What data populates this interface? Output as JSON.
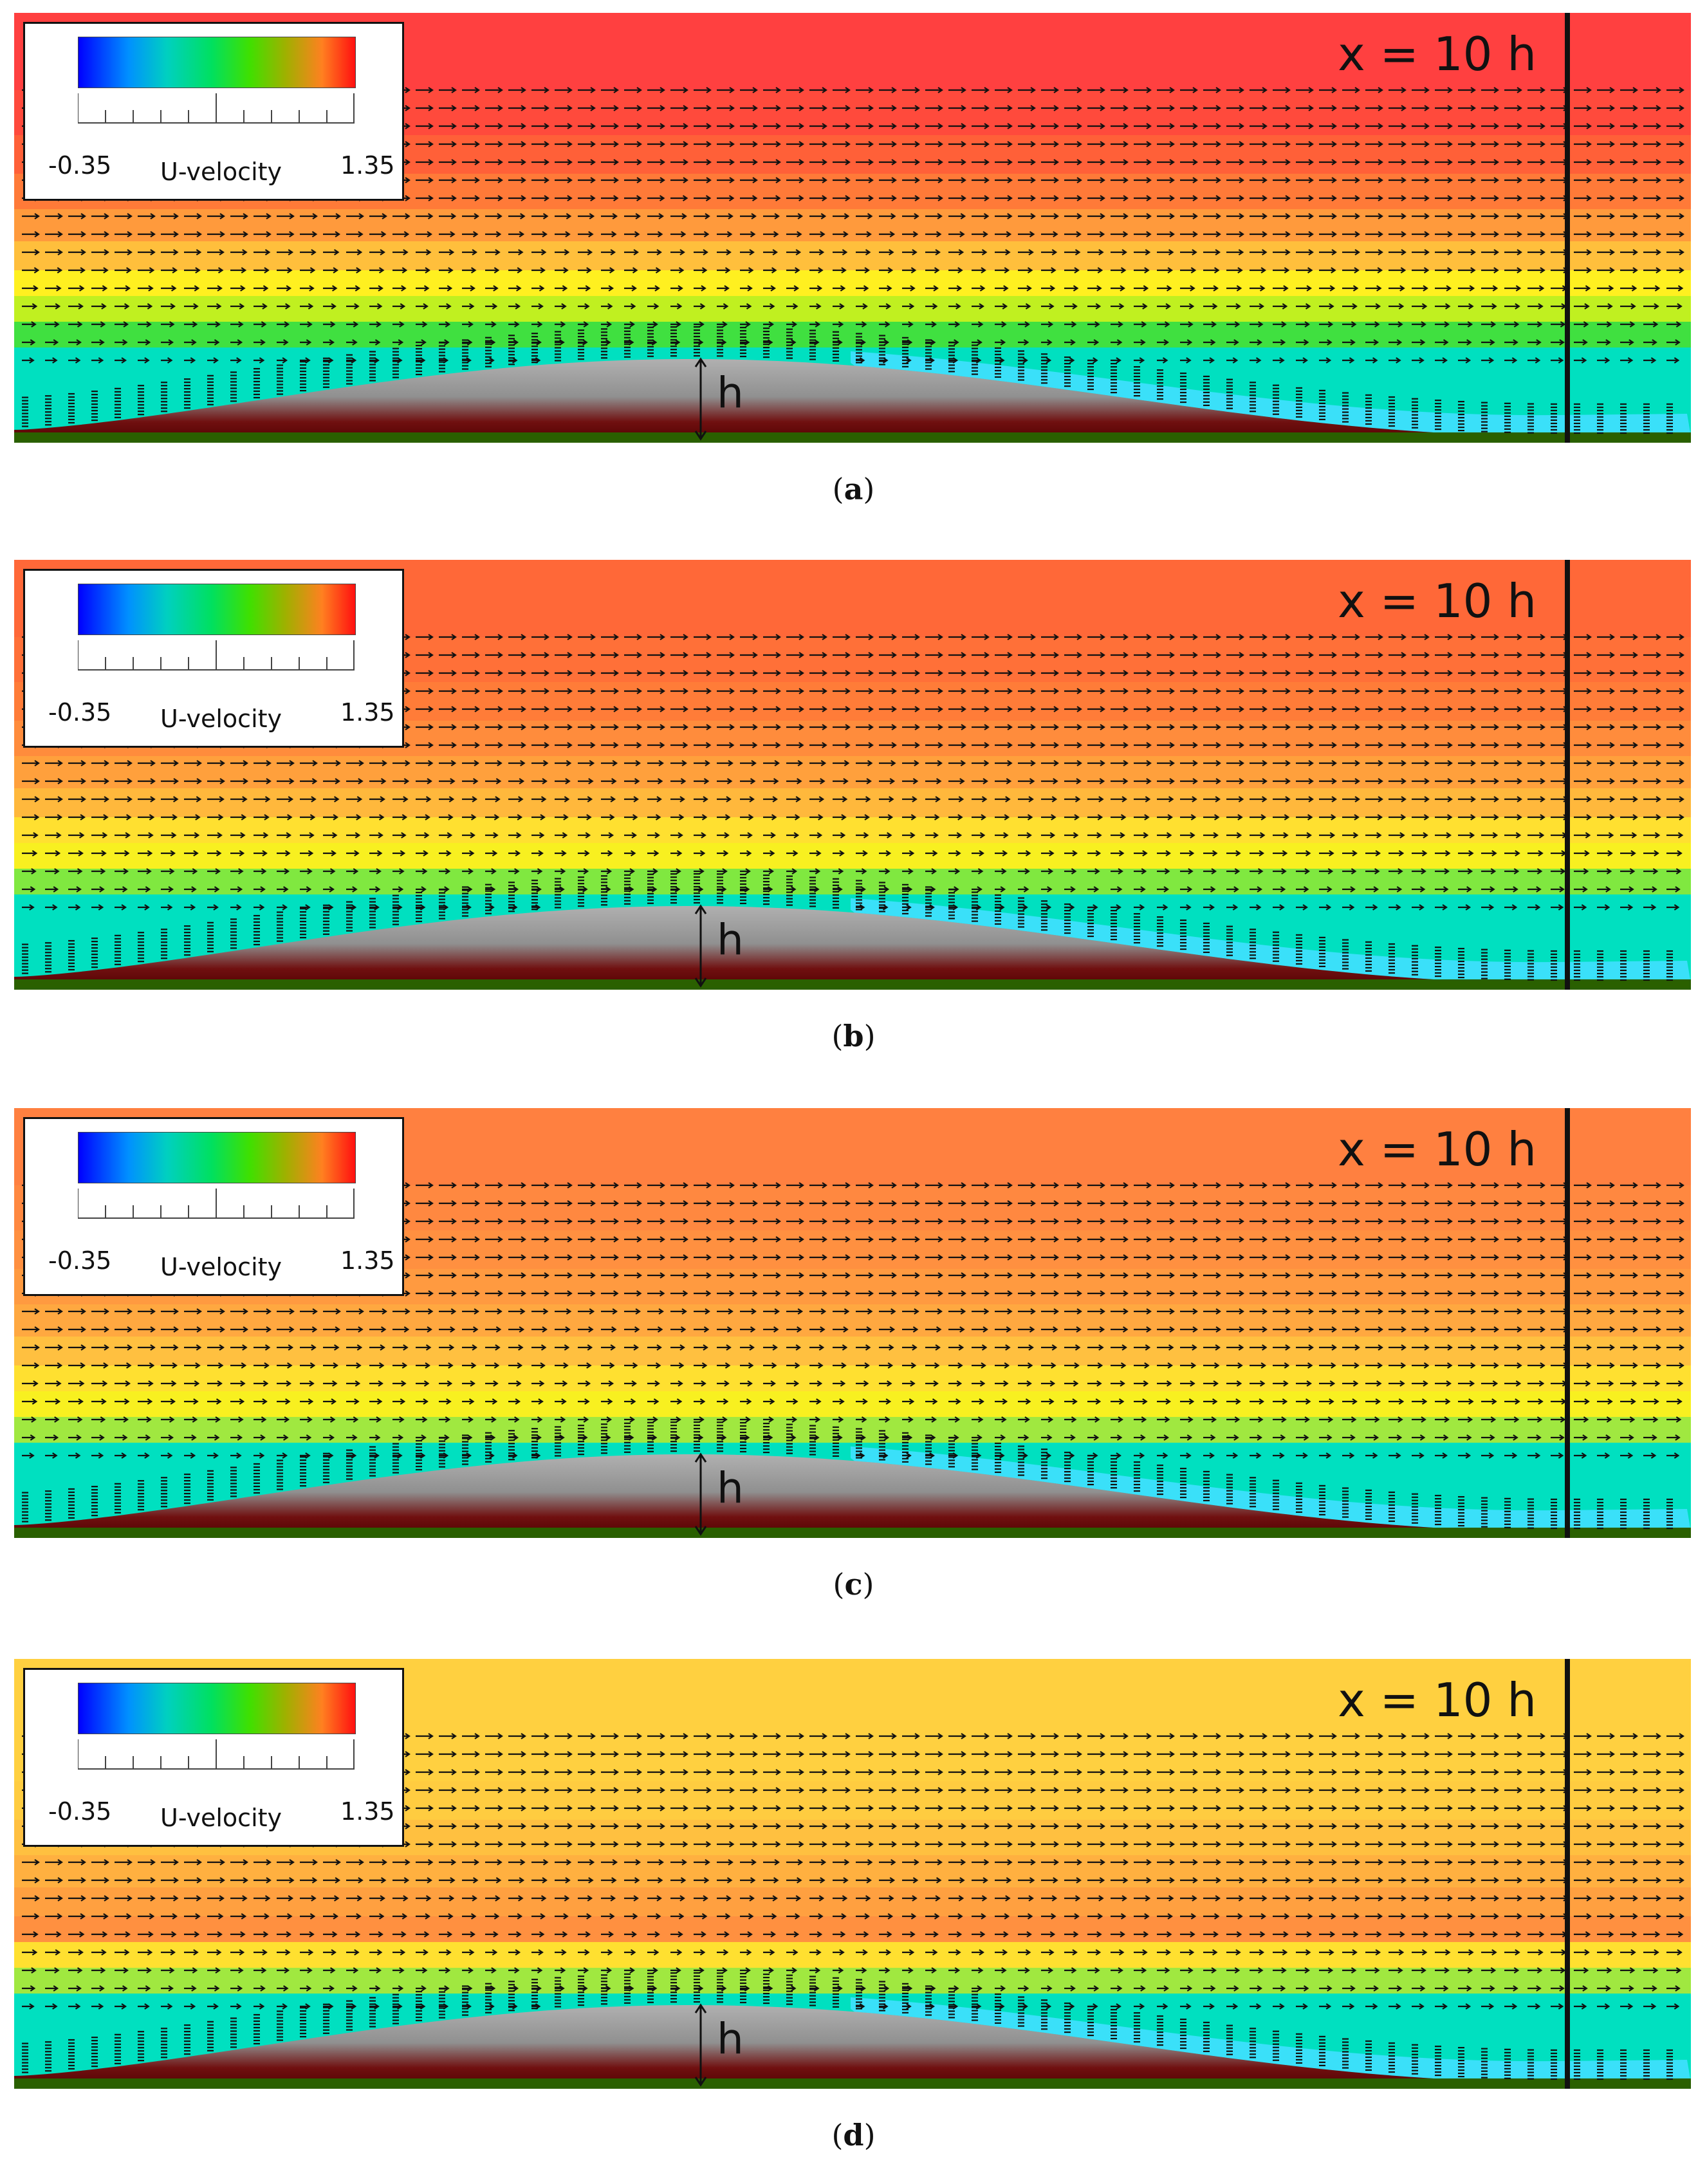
{
  "legend": {
    "min": "-0.35",
    "title": "U-velocity",
    "max": "1.35"
  },
  "station_label": "x = 10 h",
  "height_label": "h",
  "panels": [
    {
      "id": "a",
      "caption": "a",
      "colors": [
        "#ff4040",
        "#ff4a3c",
        "#ff6038",
        "#ff7a38",
        "#ff9a3c",
        "#ffbf3c",
        "#fff020",
        "#c0f020",
        "#40e040",
        "#00e0c0"
      ],
      "wake": "#40e0ff"
    },
    {
      "id": "b",
      "caption": "b",
      "colors": [
        "#ff6838",
        "#ff7038",
        "#ff7c38",
        "#ff8c3c",
        "#ffa03c",
        "#ffb83c",
        "#ffe030",
        "#f8f020",
        "#80e840",
        "#00e0c0"
      ],
      "wake": "#40e0ff"
    },
    {
      "id": "c",
      "caption": "c",
      "colors": [
        "#ff8040",
        "#ff8840",
        "#ff9040",
        "#ff9a40",
        "#ffa840",
        "#ffc040",
        "#ffe030",
        "#f8f020",
        "#a0e840",
        "#00e0c0"
      ],
      "wake": "#40e0ff"
    },
    {
      "id": "d",
      "caption": "d",
      "colors": [
        "#ffd040",
        "#ffd040",
        "#ffcc40",
        "#ffc040",
        "#ffb040",
        "#ffa040",
        "#ff9040",
        "#ffe030",
        "#a0e840",
        "#00e0c0"
      ],
      "wake": "#40e0ff"
    }
  ]
}
